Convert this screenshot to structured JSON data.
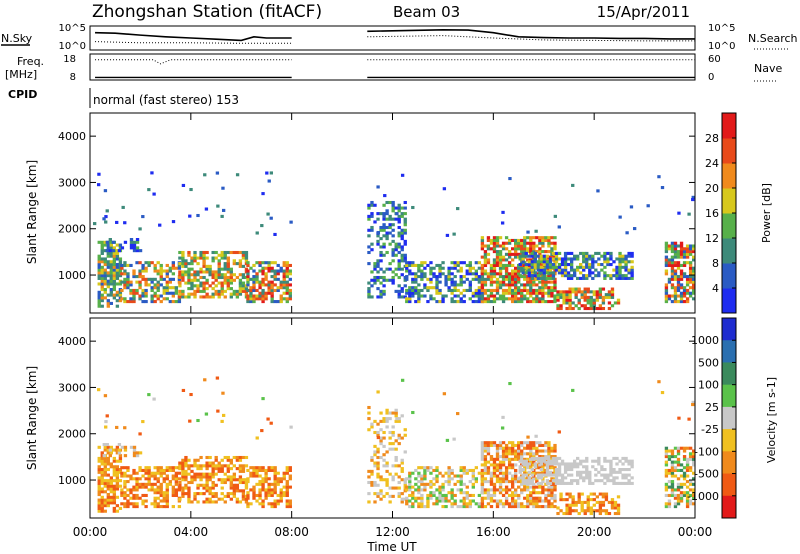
{
  "header": {
    "station": "Zhongshan Station (fitACF)",
    "beam": "Beam 03",
    "date": "15/Apr/2011"
  },
  "chart_data": [
    {
      "type": "line",
      "name": "noise-panel",
      "left_label": "N.Sky",
      "right_label": "N.Search",
      "left_ticks": [
        "10^5",
        "10^0"
      ],
      "right_ticks": [
        "10^5",
        "10^0"
      ],
      "series": [
        {
          "name": "N.Sky",
          "x": [
            0.2,
            1,
            2,
            3,
            4,
            5,
            6,
            6.5,
            7,
            8,
            11,
            12,
            13,
            14,
            15,
            16,
            17,
            18,
            19,
            20,
            21,
            22,
            23,
            24
          ],
          "y": [
            0.72,
            0.7,
            0.62,
            0.55,
            0.5,
            0.45,
            0.4,
            0.55,
            0.5,
            0.5,
            0.78,
            0.8,
            0.82,
            0.84,
            0.83,
            0.72,
            0.55,
            0.52,
            0.5,
            0.5,
            0.48,
            0.48,
            0.46,
            0.46
          ]
        },
        {
          "name": "N.Search",
          "x": [
            0.2,
            2,
            4,
            6,
            8,
            11,
            14,
            16,
            18,
            20,
            22,
            24
          ],
          "y": [
            0.35,
            0.3,
            0.3,
            0.28,
            0.28,
            0.55,
            0.6,
            0.5,
            0.42,
            0.4,
            0.38,
            0.38
          ]
        }
      ]
    },
    {
      "type": "line",
      "name": "frequency-panel",
      "left_label_1": "Freq.",
      "left_label_2": "[MHz]",
      "right_label": "Nave",
      "left_ticks": [
        "18",
        "8"
      ],
      "right_ticks": [
        "60",
        "0"
      ],
      "series": [
        {
          "name": "Freq",
          "x": [
            0.2,
            2.5,
            3,
            8,
            11,
            24
          ],
          "y": [
            0.1,
            0.1,
            0.1,
            0.1,
            0.1,
            0.1
          ]
        },
        {
          "name": "Nave",
          "x": [
            0.2,
            2.5,
            2.8,
            3.2,
            8,
            11,
            24
          ],
          "y": [
            0.78,
            0.78,
            0.62,
            0.78,
            0.78,
            0.78,
            0.78
          ]
        }
      ]
    },
    {
      "type": "heatmap",
      "name": "power",
      "cpid_label": "CPID",
      "cpid_text": "normal (fast stereo) 153",
      "ylabel": "Slant Range [km]",
      "ylim": [
        180,
        4500
      ],
      "yticks": [
        "1000",
        "2000",
        "3000",
        "4000"
      ],
      "colorbar_label": "Power [dB]",
      "colorbar_ticks": [
        "4",
        "8",
        "12",
        "16",
        "20",
        "24",
        "28"
      ],
      "colors": [
        "#1e2cf0",
        "#2a5bc4",
        "#3d8a7a",
        "#57b04a",
        "#d7c81c",
        "#f08a1c",
        "#e84a1a",
        "#e21a1a"
      ]
    },
    {
      "type": "heatmap",
      "name": "velocity",
      "ylabel": "Slant Range [km]",
      "ylim": [
        180,
        4500
      ],
      "yticks": [
        "1000",
        "2000",
        "3000",
        "4000"
      ],
      "xlabel": "Time UT",
      "xlim": [
        0,
        24
      ],
      "xticks": [
        "00:00",
        "04:00",
        "08:00",
        "12:00",
        "16:00",
        "20:00",
        "00:00"
      ],
      "colorbar_label": "Velocity [m s-1]",
      "colorbar_ticks": [
        "1000",
        "500",
        "100",
        "25",
        "-25",
        "-100",
        "-500",
        "-1000"
      ],
      "colors": [
        "#1e2cd0",
        "#2a6fb0",
        "#3a8a5c",
        "#5ac24a",
        "#c8c8c8",
        "#f0c020",
        "#f08a1c",
        "#f05a14",
        "#e21a1a"
      ]
    }
  ]
}
